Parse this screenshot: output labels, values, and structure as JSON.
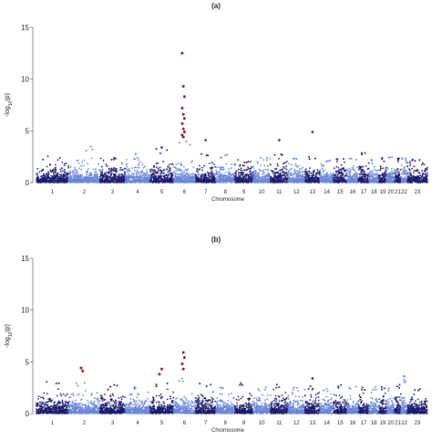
{
  "colors": {
    "dark": "#1a1a6e",
    "light": "#6a86d6",
    "highlight": "#8b1a1a",
    "axis": "#444444"
  },
  "chart_data": [
    {
      "type": "scatter",
      "panel": "(a)",
      "xlabel": "Chromosome",
      "ylabel": "-log10(p)",
      "ylim": [
        0,
        15
      ],
      "yticks": [
        "0",
        "5",
        "10",
        "15"
      ],
      "categories": [
        "1",
        "2",
        "3",
        "4",
        "5",
        "6",
        "7",
        "8",
        "9",
        "10",
        "11",
        "12",
        "13",
        "14",
        "15",
        "16",
        "17",
        "18",
        "19",
        "20",
        "21",
        "22",
        "23"
      ],
      "baseline_max_by_chromosome": [
        2.6,
        3.6,
        2.5,
        2.8,
        3.3,
        4.2,
        3.0,
        2.7,
        2.2,
        2.5,
        2.8,
        2.6,
        2.6,
        2.4,
        2.4,
        2.6,
        2.9,
        2.3,
        2.4,
        2.5,
        2.4,
        2.5,
        2.4
      ],
      "highlight_points": [
        {
          "chromosome": "6",
          "y": 12.5
        },
        {
          "chromosome": "6",
          "y": 9.3
        },
        {
          "chromosome": "6",
          "y": 8.3
        },
        {
          "chromosome": "6",
          "y": 7.2
        },
        {
          "chromosome": "6",
          "y": 6.6
        },
        {
          "chromosome": "6",
          "y": 6.2
        },
        {
          "chromosome": "6",
          "y": 5.7
        },
        {
          "chromosome": "6",
          "y": 5.2
        },
        {
          "chromosome": "6",
          "y": 4.9
        },
        {
          "chromosome": "6",
          "y": 4.6
        },
        {
          "chromosome": "6",
          "y": 4.4
        }
      ],
      "notable_points": [
        {
          "chromosome": "5",
          "y": 3.4
        },
        {
          "chromosome": "7",
          "y": 4.1
        },
        {
          "chromosome": "11",
          "y": 4.1
        },
        {
          "chromosome": "13",
          "y": 4.9
        }
      ]
    },
    {
      "type": "scatter",
      "panel": "(b)",
      "xlabel": "Chromosome",
      "ylabel": "-log10(p)",
      "ylim": [
        0,
        15
      ],
      "yticks": [
        "0",
        "5",
        "10",
        "15"
      ],
      "categories": [
        "1",
        "2",
        "3",
        "4",
        "5",
        "6",
        "7",
        "8",
        "9",
        "10",
        "11",
        "12",
        "13",
        "14",
        "15",
        "16",
        "17",
        "18",
        "19",
        "20",
        "21",
        "22",
        "23"
      ],
      "baseline_max_by_chromosome": [
        3.2,
        3.0,
        2.9,
        2.7,
        3.0,
        3.6,
        3.1,
        2.7,
        3.2,
        2.6,
        2.8,
        2.6,
        2.7,
        2.5,
        2.8,
        2.7,
        2.6,
        2.6,
        2.6,
        2.5,
        2.8,
        3.5,
        2.5
      ],
      "highlight_points": [
        {
          "chromosome": "2",
          "y": 4.4
        },
        {
          "chromosome": "2",
          "y": 4.1
        },
        {
          "chromosome": "5",
          "y": 4.3
        },
        {
          "chromosome": "5",
          "y": 3.8
        },
        {
          "chromosome": "6",
          "y": 5.9
        },
        {
          "chromosome": "6",
          "y": 5.4
        },
        {
          "chromosome": "6",
          "y": 4.8
        },
        {
          "chromosome": "6",
          "y": 4.3
        }
      ],
      "notable_points": [
        {
          "chromosome": "13",
          "y": 3.4
        },
        {
          "chromosome": "22",
          "y": 3.6
        }
      ]
    }
  ]
}
